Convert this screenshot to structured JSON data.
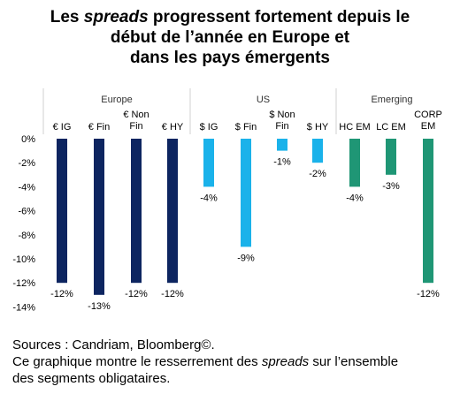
{
  "title": {
    "part1": "Les ",
    "part2": "spreads",
    "part3": " progressent fortement depuis le",
    "line2": "début de l’année en Europe et",
    "line3": "dans les pays émergents"
  },
  "chart_data": {
    "type": "bar",
    "groups": [
      {
        "name": "Europe",
        "categories": [
          "€ IG",
          "€ Fin",
          "€ Non Fin",
          "€ HY"
        ],
        "values": [
          -12,
          -13,
          -12,
          -12
        ],
        "color": "#0d2560"
      },
      {
        "name": "US",
        "categories": [
          "$ IG",
          "$ Fin",
          "$ Non Fin",
          "$ HY"
        ],
        "values": [
          -4,
          -9,
          -1,
          -2
        ],
        "color": "#1ab2ea"
      },
      {
        "name": "Emerging",
        "categories": [
          "HC EM",
          "LC EM",
          "CORP EM"
        ],
        "values": [
          -4,
          -3,
          -12
        ],
        "color": "#1f9675"
      }
    ],
    "value_labels": [
      "-12%",
      "-13%",
      "-12%",
      "-12%",
      "-4%",
      "-9%",
      "-1%",
      "-2%",
      "-4%",
      "-3%",
      "-12%"
    ],
    "y_ticks": [
      "0%",
      "-2%",
      "-4%",
      "-6%",
      "-8%",
      "-10%",
      "-12%",
      "-14%"
    ],
    "ylim": [
      -14,
      0
    ],
    "grid": false,
    "legend": "none"
  },
  "source": {
    "line1": "Sources : Candriam, Bloomberg©.",
    "line2a": "Ce graphique montre le resserrement des ",
    "line2b": "spreads",
    "line2c": " sur l’ensemble",
    "line3": "des segments obligataires."
  }
}
